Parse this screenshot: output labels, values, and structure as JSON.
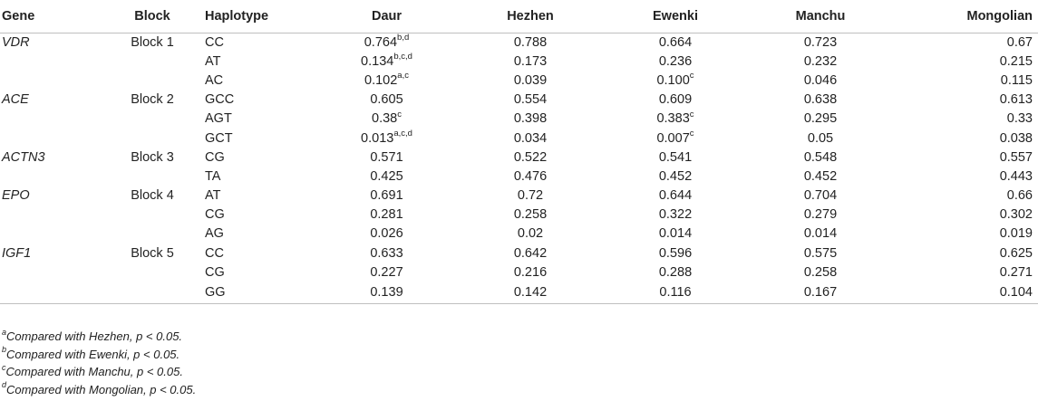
{
  "table": {
    "headers": {
      "gene": "Gene",
      "block": "Block",
      "haplotype": "Haplotype",
      "daur": "Daur",
      "hezhen": "Hezhen",
      "ewenki": "Ewenki",
      "manchu": "Manchu",
      "mongolian": "Mongolian"
    },
    "rows": [
      {
        "gene": "VDR",
        "block": "Block 1",
        "haplotype": "CC",
        "daur": "0.764",
        "daur_sup": "b,d",
        "hezhen": "0.788",
        "ewenki": "0.664",
        "ewenki_sup": "",
        "manchu": "0.723",
        "mongolian": "0.67"
      },
      {
        "gene": "",
        "block": "",
        "haplotype": "AT",
        "daur": "0.134",
        "daur_sup": "b,c,d",
        "hezhen": "0.173",
        "ewenki": "0.236",
        "ewenki_sup": "",
        "manchu": "0.232",
        "mongolian": "0.215"
      },
      {
        "gene": "",
        "block": "",
        "haplotype": "AC",
        "daur": "0.102",
        "daur_sup": "a,c",
        "hezhen": "0.039",
        "ewenki": "0.100",
        "ewenki_sup": "c",
        "manchu": "0.046",
        "mongolian": "0.115"
      },
      {
        "gene": "ACE",
        "block": "Block 2",
        "haplotype": "GCC",
        "daur": "0.605",
        "daur_sup": "",
        "hezhen": "0.554",
        "ewenki": "0.609",
        "ewenki_sup": "",
        "manchu": "0.638",
        "mongolian": "0.613"
      },
      {
        "gene": "",
        "block": "",
        "haplotype": "AGT",
        "daur": "0.38",
        "daur_sup": "c",
        "hezhen": "0.398",
        "ewenki": "0.383",
        "ewenki_sup": "c",
        "manchu": "0.295",
        "mongolian": "0.33"
      },
      {
        "gene": "",
        "block": "",
        "haplotype": "GCT",
        "daur": "0.013",
        "daur_sup": "a,c,d",
        "hezhen": "0.034",
        "ewenki": "0.007",
        "ewenki_sup": "c",
        "manchu": "0.05",
        "mongolian": "0.038"
      },
      {
        "gene": "ACTN3",
        "block": "Block 3",
        "haplotype": "CG",
        "daur": "0.571",
        "daur_sup": "",
        "hezhen": "0.522",
        "ewenki": "0.541",
        "ewenki_sup": "",
        "manchu": "0.548",
        "mongolian": "0.557"
      },
      {
        "gene": "",
        "block": "",
        "haplotype": "TA",
        "daur": "0.425",
        "daur_sup": "",
        "hezhen": "0.476",
        "ewenki": "0.452",
        "ewenki_sup": "",
        "manchu": "0.452",
        "mongolian": "0.443"
      },
      {
        "gene": "EPO",
        "block": "Block 4",
        "haplotype": "AT",
        "daur": "0.691",
        "daur_sup": "",
        "hezhen": "0.72",
        "ewenki": "0.644",
        "ewenki_sup": "",
        "manchu": "0.704",
        "mongolian": "0.66"
      },
      {
        "gene": "",
        "block": "",
        "haplotype": "CG",
        "daur": "0.281",
        "daur_sup": "",
        "hezhen": "0.258",
        "ewenki": "0.322",
        "ewenki_sup": "",
        "manchu": "0.279",
        "mongolian": "0.302"
      },
      {
        "gene": "",
        "block": "",
        "haplotype": "AG",
        "daur": "0.026",
        "daur_sup": "",
        "hezhen": "0.02",
        "ewenki": "0.014",
        "ewenki_sup": "",
        "manchu": "0.014",
        "mongolian": "0.019"
      },
      {
        "gene": "IGF1",
        "block": "Block 5",
        "haplotype": "CC",
        "daur": "0.633",
        "daur_sup": "",
        "hezhen": "0.642",
        "ewenki": "0.596",
        "ewenki_sup": "",
        "manchu": "0.575",
        "mongolian": "0.625"
      },
      {
        "gene": "",
        "block": "",
        "haplotype": "CG",
        "daur": "0.227",
        "daur_sup": "",
        "hezhen": "0.216",
        "ewenki": "0.288",
        "ewenki_sup": "",
        "manchu": "0.258",
        "mongolian": "0.271"
      },
      {
        "gene": "",
        "block": "",
        "haplotype": "GG",
        "daur": "0.139",
        "daur_sup": "",
        "hezhen": "0.142",
        "ewenki": "0.116",
        "ewenki_sup": "",
        "manchu": "0.167",
        "mongolian": "0.104"
      }
    ]
  },
  "footnotes": [
    {
      "mark": "a",
      "text": "Compared with Hezhen, p < 0.05."
    },
    {
      "mark": "b",
      "text": "Compared with Ewenki, p < 0.05."
    },
    {
      "mark": "c",
      "text": "Compared with Manchu, p < 0.05."
    },
    {
      "mark": "d",
      "text": "Compared with Mongolian, p < 0.05."
    }
  ]
}
